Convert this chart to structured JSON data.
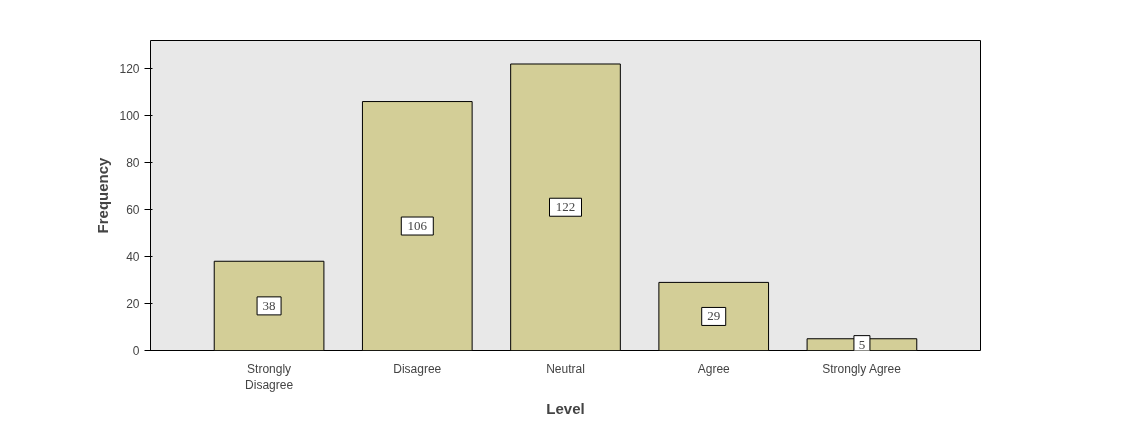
{
  "chart_data": {
    "type": "bar",
    "xlabel": "Level",
    "ylabel": "Frequency",
    "categories": [
      "Strongly Disagree",
      "Disagree",
      "Neutral",
      "Agree",
      "Strongly Agree"
    ],
    "values": [
      38,
      106,
      122,
      29,
      5
    ],
    "color": "#d3ce97",
    "ylim": [
      0,
      132
    ],
    "yticks": [
      0,
      20,
      40,
      60,
      80,
      100,
      120
    ],
    "grid": false,
    "data_labels": true
  }
}
